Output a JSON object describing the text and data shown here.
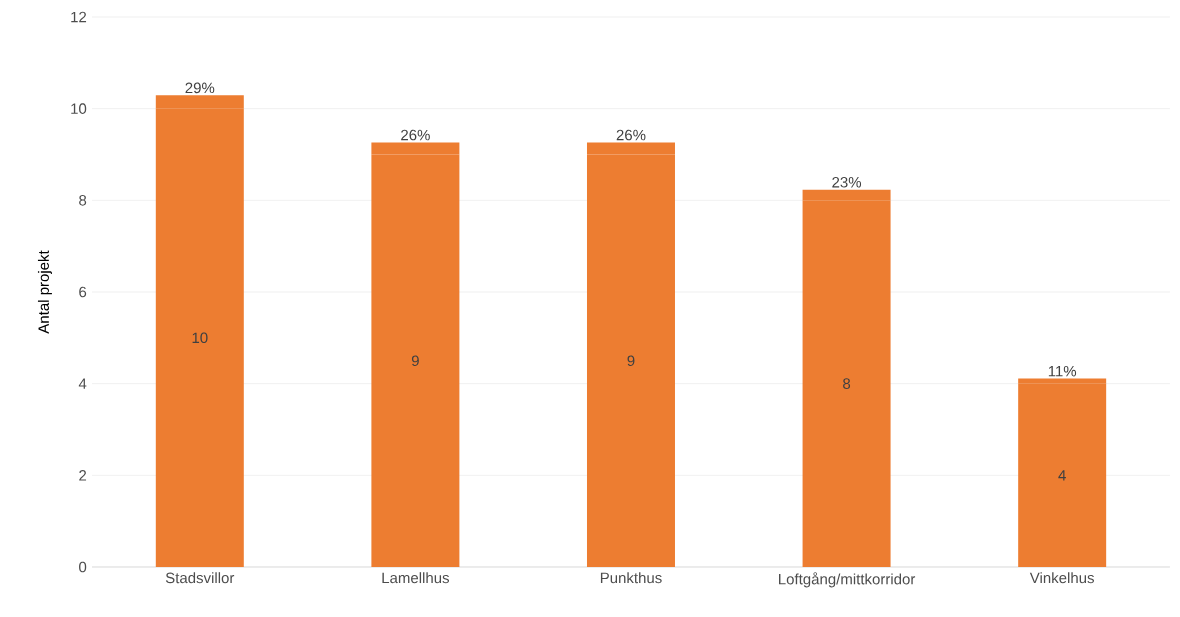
{
  "chart_data": {
    "type": "bar",
    "stacked": true,
    "ylabel": "Antal projekt",
    "categories": [
      "Stadsvillor",
      "Lamellhus",
      "Punkthus",
      "Loftgång/mittkorridor",
      "Vinkelhus"
    ],
    "series": [
      {
        "color": "#ed7d31",
        "values": [
          10,
          9,
          9,
          8,
          4
        ],
        "value_labels": [
          "10",
          "9",
          "9",
          "8",
          "4"
        ]
      },
      {
        "color": "#ed7d31",
        "values": [
          0.29,
          0.26,
          0.26,
          0.23,
          0.11
        ],
        "value_labels": [
          "29%",
          "26%",
          "26%",
          "23%",
          "11%"
        ]
      }
    ],
    "ylim": [
      0,
      12
    ],
    "yticks": [
      0,
      2,
      4,
      6,
      8,
      10,
      12
    ],
    "grid": "y"
  }
}
